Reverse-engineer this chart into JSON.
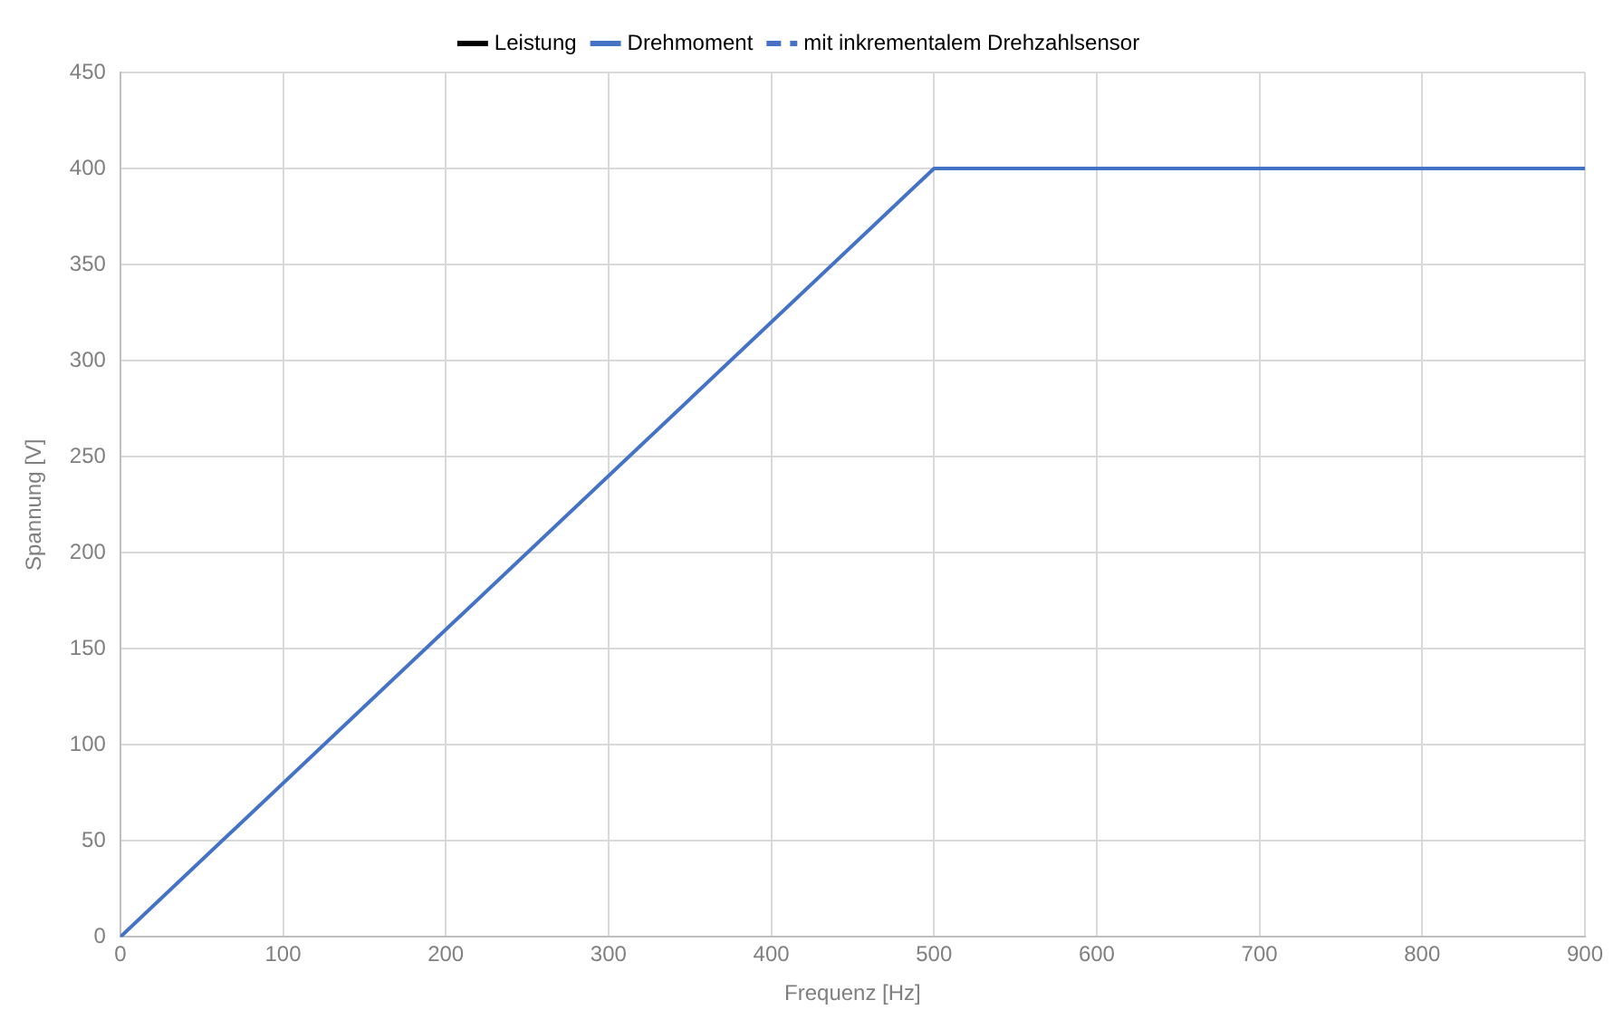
{
  "chart_data": {
    "type": "line",
    "xlabel": "Frequenz [Hz]",
    "ylabel": "Spannung [V]",
    "xlim": [
      0,
      900
    ],
    "xticks": [
      0,
      100,
      200,
      300,
      400,
      500,
      600,
      700,
      800,
      900
    ],
    "ylim": [
      0,
      450
    ],
    "yticks": [
      0,
      50,
      100,
      150,
      200,
      250,
      300,
      350,
      400,
      450
    ],
    "grid": true,
    "legend": "top",
    "marker": "none",
    "series": [
      {
        "name": "Leistung",
        "color": "#000000",
        "line_style": "solid"
      },
      {
        "name": "Drehmoment",
        "color": "#4472c4",
        "x": [
          0,
          500,
          900
        ],
        "values": [
          0,
          400,
          400
        ],
        "line_style": "solid"
      },
      {
        "name": "mit inkrementalem Drehzahlsensor",
        "color": "#4472c4",
        "line_style": "dashed"
      }
    ]
  }
}
